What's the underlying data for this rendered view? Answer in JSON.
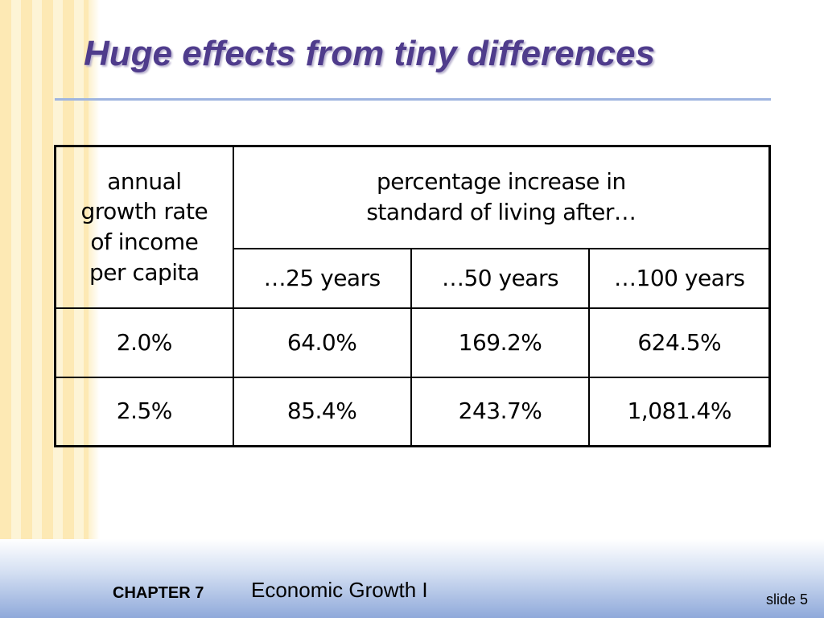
{
  "slide": {
    "title": "Huge effects from tiny differences"
  },
  "table": {
    "rate_header_lines": [
      "annual",
      "growth rate",
      "of income",
      "per capita"
    ],
    "span_header_lines": [
      "percentage increase in",
      "standard of living after…"
    ],
    "period_headers": [
      "…25 years",
      "…50 years",
      "…100 years"
    ],
    "rows": [
      {
        "rate": "2.0%",
        "values": [
          "64.0%",
          "169.2%",
          "624.5%"
        ]
      },
      {
        "rate": "2.5%",
        "values": [
          "85.4%",
          "243.7%",
          "1,081.4%"
        ]
      }
    ]
  },
  "footer": {
    "chapter_label": "CHAPTER 7",
    "topic": "Economic Growth I",
    "slide_number": "slide 5"
  }
}
